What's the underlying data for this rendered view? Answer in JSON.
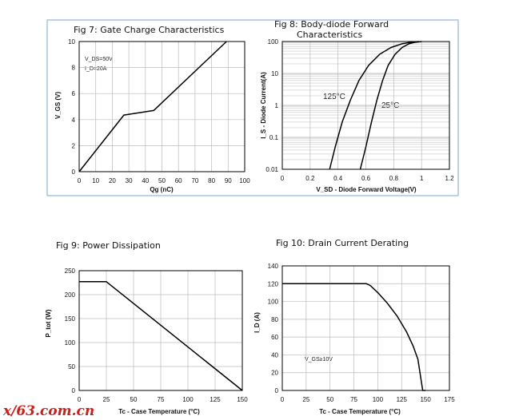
{
  "colors": {
    "frame_border": "#7fa6d8",
    "grid": "#bbbbbb",
    "curve": "#000000",
    "watermark": "#c8201a"
  },
  "watermark": "x/63.com.cn",
  "chart_data": [
    {
      "id": "fig7",
      "type": "line",
      "title": "Fig 7: Gate Charge Characteristics",
      "xlabel": "Qg (nC)",
      "ylabel": "V_GS (V)",
      "xlim": [
        0,
        100
      ],
      "ylim": [
        0,
        10
      ],
      "xticks": [
        "0",
        "10",
        "20",
        "30",
        "40",
        "50",
        "60",
        "70",
        "80",
        "90",
        "100"
      ],
      "yticks": [
        "0",
        "2",
        "4",
        "6",
        "8",
        "10"
      ],
      "grid": true,
      "annotations": [
        {
          "text": "V_DS=50V"
        },
        {
          "text": "I_D=20A"
        }
      ],
      "series": [
        {
          "x": [
            0,
            27,
            45,
            89
          ],
          "y": [
            0,
            4.35,
            4.7,
            10
          ]
        }
      ]
    },
    {
      "id": "fig8",
      "type": "line",
      "title": "Fig 8: Body-diode Forward",
      "title2": "Characteristics",
      "xlabel": "V_SD - Diode Forward Voltage(V)",
      "ylabel": "I_S - Diode Current(A)",
      "xlim": [
        0,
        1.2
      ],
      "ylim": [
        0.01,
        100
      ],
      "yscale": "log",
      "xticks": [
        "0",
        "0.2",
        "0.4",
        "0.6",
        "0.8",
        "1",
        "1.2"
      ],
      "yticks": [
        "0.01",
        "0.1",
        "1",
        "10",
        "100"
      ],
      "grid": true,
      "series": [
        {
          "name": "125°C",
          "x": [
            0.34,
            0.38,
            0.43,
            0.49,
            0.55,
            0.62,
            0.7,
            0.78,
            0.86,
            0.93,
            0.98
          ],
          "y": [
            0.01,
            0.05,
            0.3,
            1.5,
            6,
            18,
            40,
            65,
            85,
            96,
            100
          ]
        },
        {
          "name": "25°C",
          "x": [
            0.56,
            0.6,
            0.64,
            0.68,
            0.72,
            0.76,
            0.81,
            0.86,
            0.91,
            0.96,
            1.0
          ],
          "y": [
            0.01,
            0.05,
            0.3,
            1.5,
            6,
            18,
            40,
            65,
            85,
            96,
            100
          ]
        }
      ]
    },
    {
      "id": "fig9",
      "type": "line",
      "title": "Fig 9: Power Dissipation",
      "xlabel": "Tc - Case Temperature (°C)",
      "ylabel": "P_tot (W)",
      "xlim": [
        0,
        150
      ],
      "ylim": [
        0,
        250
      ],
      "xticks": [
        "0",
        "25",
        "50",
        "75",
        "100",
        "125",
        "150"
      ],
      "yticks": [
        "0",
        "50",
        "100",
        "150",
        "200",
        "250"
      ],
      "grid": true,
      "series": [
        {
          "x": [
            0,
            25,
            150
          ],
          "y": [
            227,
            227,
            0
          ]
        }
      ]
    },
    {
      "id": "fig10",
      "type": "line",
      "title": "Fig 10: Drain Current Derating",
      "xlabel": "Tc - Case Temperature (°C)",
      "ylabel": "I_D (A)",
      "xlim": [
        0,
        175
      ],
      "ylim": [
        0,
        140
      ],
      "xticks": [
        "0",
        "25",
        "50",
        "75",
        "100",
        "125",
        "150",
        "175"
      ],
      "yticks": [
        "0",
        "20",
        "40",
        "60",
        "80",
        "100",
        "120",
        "140"
      ],
      "grid": true,
      "annotations": [
        {
          "text": "V_GS≥10V"
        }
      ],
      "series": [
        {
          "x": [
            0,
            88,
            92,
            100,
            110,
            120,
            130,
            137,
            142,
            147,
            150
          ],
          "y": [
            120,
            120,
            118,
            110,
            98,
            84,
            66,
            50,
            35,
            0,
            0
          ]
        }
      ]
    }
  ]
}
